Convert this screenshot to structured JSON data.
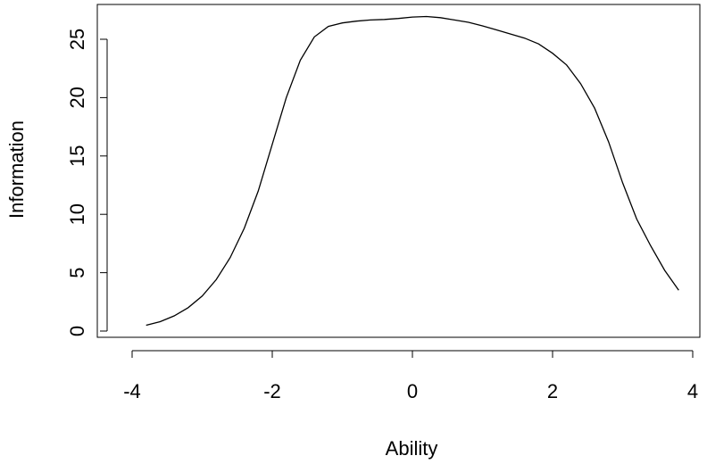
{
  "chart_data": {
    "type": "line",
    "xlabel": "Ability",
    "ylabel": "Information",
    "xlim": [
      -4,
      4
    ],
    "ylim": [
      0,
      27
    ],
    "x_ticks": [
      -4,
      -2,
      0,
      2,
      4
    ],
    "y_ticks": [
      0,
      5,
      10,
      15,
      20,
      25
    ],
    "x_tick_labels": [
      "-4",
      "-2",
      "0",
      "2",
      "4"
    ],
    "y_tick_labels": [
      "0",
      "5",
      "10",
      "15",
      "20",
      "25"
    ],
    "grid": false,
    "line_color": "#000000",
    "series": [
      {
        "x": [
          -3.8,
          -3.6,
          -3.4,
          -3.2,
          -3.0,
          -2.8,
          -2.6,
          -2.4,
          -2.2,
          -2.0,
          -1.8,
          -1.6,
          -1.4,
          -1.2,
          -1.0,
          -0.8,
          -0.6,
          -0.4,
          -0.2,
          0.0,
          0.2,
          0.4,
          0.6,
          0.8,
          1.0,
          1.2,
          1.4,
          1.6,
          1.8,
          2.0,
          2.2,
          2.4,
          2.6,
          2.8,
          3.0,
          3.2,
          3.4,
          3.6,
          3.8
        ],
        "y": [
          0.5,
          0.8,
          1.3,
          2.0,
          3.0,
          4.4,
          6.3,
          8.8,
          12.0,
          16.0,
          20.0,
          23.2,
          25.2,
          26.1,
          26.4,
          26.55,
          26.65,
          26.7,
          26.78,
          26.9,
          26.95,
          26.85,
          26.65,
          26.45,
          26.15,
          25.8,
          25.45,
          25.1,
          24.6,
          23.8,
          22.8,
          21.2,
          19.1,
          16.2,
          12.7,
          9.6,
          7.3,
          5.2,
          3.5
        ]
      }
    ]
  }
}
